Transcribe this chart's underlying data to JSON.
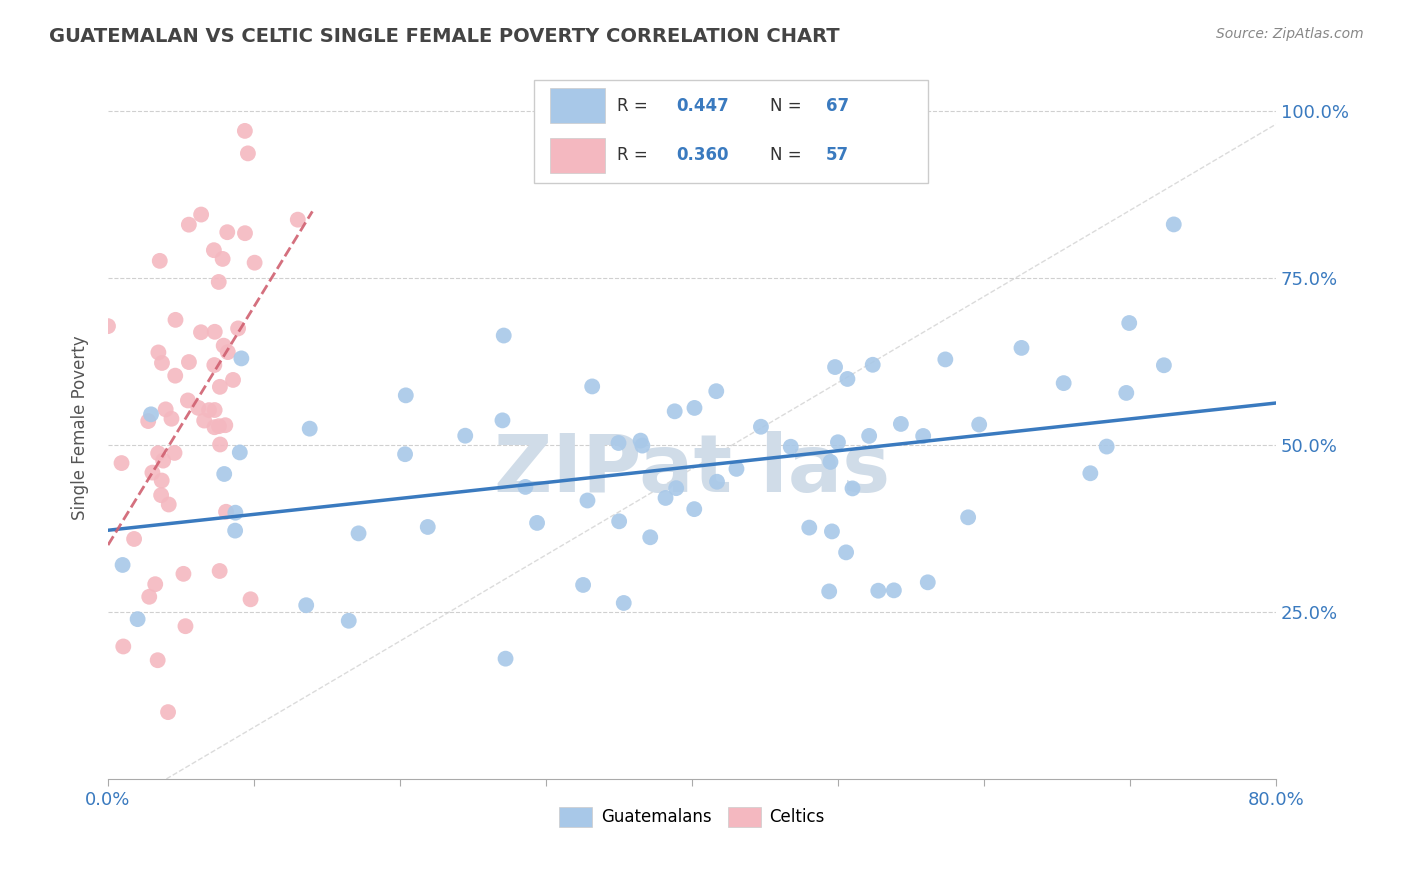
{
  "title": "GUATEMALAN VS CELTIC SINGLE FEMALE POVERTY CORRELATION CHART",
  "source": "Source: ZipAtlas.com",
  "ylabel": "Single Female Poverty",
  "legend_r_blue": "0.447",
  "legend_n_blue": "67",
  "legend_r_pink": "0.360",
  "legend_n_pink": "57",
  "blue_color": "#a8c8e8",
  "pink_color": "#f4b8c0",
  "blue_line_color": "#3a7abf",
  "pink_line_color": "#d06070",
  "grid_color": "#d0d0d0",
  "text_color": "#3a7abf",
  "title_color": "#444444",
  "watermark_color": "#d0dce8",
  "xlim": [
    0.0,
    0.8
  ],
  "ylim": [
    0.0,
    1.05
  ],
  "blue_scatter_seed": 42,
  "pink_scatter_seed": 99,
  "n_blue": 67,
  "n_pink": 57,
  "rho_blue": 0.447,
  "rho_pink": 0.36
}
